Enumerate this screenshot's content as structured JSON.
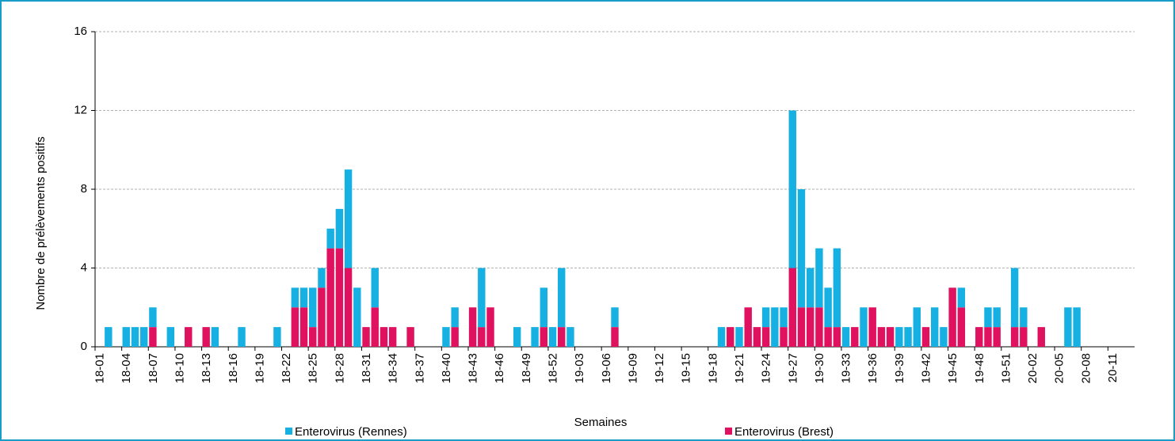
{
  "chart_data": {
    "type": "bar",
    "stacked": true,
    "y_label": "Nombre de prélèvements positifs",
    "x_label": "Semaines",
    "ylim": [
      0,
      16
    ],
    "yticks": [
      0,
      4,
      8,
      12,
      16
    ],
    "grid": true,
    "categories": [
      "18-01",
      null,
      null,
      "18-04",
      null,
      null,
      "18-07",
      null,
      null,
      "18-10",
      null,
      null,
      "18-13",
      null,
      null,
      "18-16",
      null,
      null,
      "18-19",
      null,
      null,
      "18-22",
      null,
      null,
      "18-25",
      null,
      null,
      "18-28",
      null,
      null,
      "18-31",
      null,
      null,
      "18-34",
      null,
      null,
      "18-37",
      null,
      null,
      "18-40",
      null,
      null,
      "18-43",
      null,
      null,
      "18-46",
      null,
      null,
      "18-49",
      null,
      null,
      "18-52",
      null,
      null,
      "19-03",
      null,
      null,
      "19-06",
      null,
      null,
      "19-09",
      null,
      null,
      "19-12",
      null,
      null,
      "19-15",
      null,
      null,
      "19-18",
      null,
      null,
      "19-21",
      null,
      null,
      "19-24",
      null,
      null,
      "19-27",
      null,
      null,
      "19-30",
      null,
      null,
      "19-33",
      null,
      null,
      "19-36",
      null,
      null,
      "19-39",
      null,
      null,
      "19-42",
      null,
      null,
      "19-45",
      null,
      null,
      "19-48",
      null,
      null,
      "19-51",
      null,
      null,
      "20-02",
      null,
      null,
      "20-05",
      null,
      null,
      "20-08",
      null,
      null,
      "20-11",
      null,
      null
    ],
    "series": [
      {
        "name": "Enterovirus (Rennes)",
        "color": "#16b1e2",
        "values": [
          0,
          1,
          0,
          1,
          1,
          1,
          1,
          0,
          1,
          0,
          0,
          0,
          0,
          1,
          0,
          0,
          1,
          0,
          0,
          0,
          1,
          0,
          1,
          1,
          2,
          1,
          1,
          2,
          5,
          3,
          0,
          2,
          0,
          0,
          0,
          0,
          0,
          0,
          0,
          1,
          1,
          0,
          0,
          3,
          0,
          0,
          0,
          1,
          0,
          1,
          2,
          1,
          3,
          1,
          0,
          0,
          0,
          0,
          1,
          0,
          0,
          0,
          0,
          0,
          0,
          0,
          0,
          0,
          0,
          0,
          1,
          0,
          1,
          0,
          0,
          1,
          2,
          1,
          8,
          6,
          2,
          3,
          2,
          4,
          1,
          0,
          2,
          0,
          0,
          0,
          1,
          1,
          2,
          0,
          2,
          1,
          0,
          1,
          0,
          0,
          1,
          1,
          0,
          3,
          1,
          0,
          0,
          0,
          0,
          2,
          2,
          0,
          0,
          0,
          0,
          0,
          0
        ]
      },
      {
        "name": "Enterovirus (Brest)",
        "color": "#e0115f",
        "values": [
          0,
          0,
          0,
          0,
          0,
          0,
          1,
          0,
          0,
          0,
          1,
          0,
          1,
          0,
          0,
          0,
          0,
          0,
          0,
          0,
          0,
          0,
          2,
          2,
          1,
          3,
          5,
          5,
          4,
          0,
          1,
          2,
          1,
          1,
          0,
          1,
          0,
          0,
          0,
          0,
          1,
          0,
          2,
          1,
          2,
          0,
          0,
          0,
          0,
          0,
          1,
          0,
          1,
          0,
          0,
          0,
          0,
          0,
          1,
          0,
          0,
          0,
          0,
          0,
          0,
          0,
          0,
          0,
          0,
          0,
          0,
          1,
          0,
          2,
          1,
          1,
          0,
          1,
          4,
          2,
          2,
          2,
          1,
          1,
          0,
          1,
          0,
          2,
          1,
          1,
          0,
          0,
          0,
          1,
          0,
          0,
          3,
          2,
          0,
          1,
          1,
          1,
          0,
          1,
          1,
          0,
          1,
          0,
          0,
          0,
          0,
          0,
          0,
          0,
          0,
          0,
          0
        ]
      }
    ]
  }
}
